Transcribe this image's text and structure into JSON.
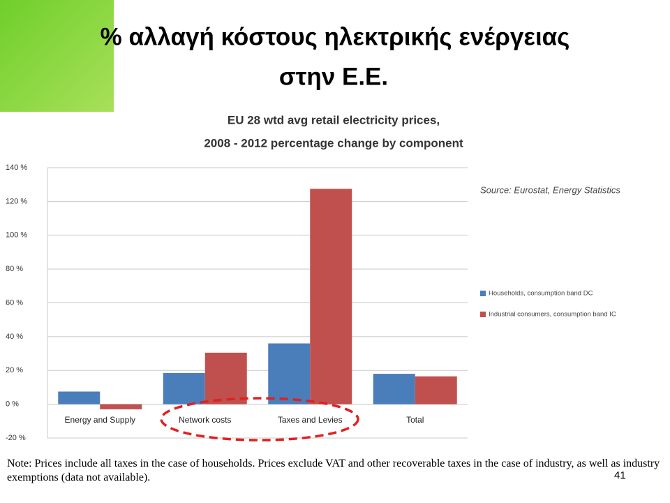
{
  "slide_title": [
    "% αλλαγή κόστους ηλεκτρικής ενέργειας",
    "στην Ε.Ε."
  ],
  "chart_data": {
    "type": "bar",
    "title": [
      "EU 28 wtd avg retail electricity prices,",
      "2008 - 2012 percentage change by component"
    ],
    "annotation": "Source: Eurostat, Energy Statistics",
    "categories": [
      "Energy and Supply",
      "Network costs",
      "Taxes and Levies",
      "Total"
    ],
    "series": [
      {
        "name": "Households, consumption band DC",
        "color": "#4a7ebb",
        "values": [
          7.5,
          18.5,
          36,
          18
        ]
      },
      {
        "name": "Industrial consumers, consumption band IC",
        "color": "#c0504d",
        "values": [
          -3,
          30.5,
          127.5,
          16.5
        ]
      }
    ],
    "ylim": [
      -20,
      140
    ],
    "yticks": [
      {
        "value": -20,
        "label": "-20 %"
      },
      {
        "value": 0,
        "label": "0 %"
      },
      {
        "value": 20,
        "label": "20 %"
      },
      {
        "value": 40,
        "label": "40 %"
      },
      {
        "value": 60,
        "label": "60 %"
      },
      {
        "value": 80,
        "label": "80 %"
      },
      {
        "value": 100,
        "label": "100 %"
      },
      {
        "value": 120,
        "label": "120 %"
      },
      {
        "value": 140,
        "label": "140 %"
      }
    ],
    "grid": true
  },
  "note": "Note: Prices include all taxes in the case of households. Prices exclude VAT and other recoverable taxes in the case of industry, as well as industry exemptions (data not available).",
  "page_number": 41
}
